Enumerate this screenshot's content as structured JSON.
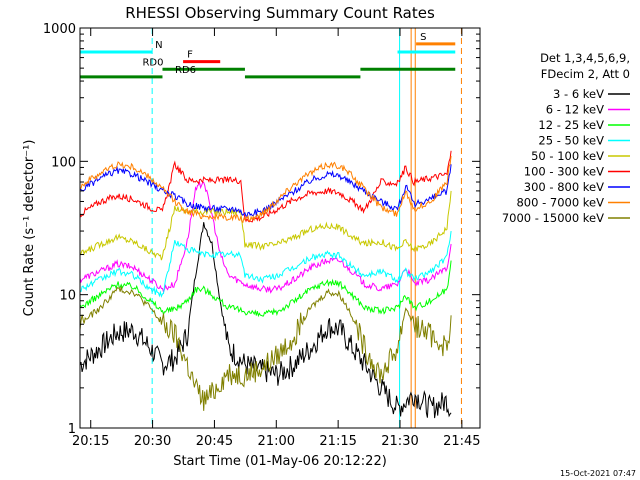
{
  "chart_data": {
    "type": "line",
    "title": "RHESSI Observing Summary Count Rates",
    "xlabel": "Start Time (01-May-06 20:12:22)",
    "ylabel": "Count Rate (s⁻¹ detector⁻¹)",
    "y_scale": "log",
    "ylim": [
      1,
      1000
    ],
    "xlim_minutes": [
      0,
      97
    ],
    "x_ticks": [
      {
        "t": 2.6,
        "label": "20:15"
      },
      {
        "t": 17.6,
        "label": "20:30"
      },
      {
        "t": 32.6,
        "label": "20:45"
      },
      {
        "t": 47.6,
        "label": "21:00"
      },
      {
        "t": 62.6,
        "label": "21:15"
      },
      {
        "t": 77.6,
        "label": "21:30"
      },
      {
        "t": 92.6,
        "label": "21:45"
      }
    ],
    "y_ticks": [
      {
        "v": 1,
        "label": "1"
      },
      {
        "v": 10,
        "label": "10"
      },
      {
        "v": 100,
        "label": "100"
      },
      {
        "v": 1000,
        "label": "1000"
      }
    ],
    "legend_header": [
      "Det 1,3,4,5,6,9,",
      "FDecim 2, Att 0"
    ],
    "series": [
      {
        "name": "3 - 6 keV",
        "color": "#000000",
        "points": [
          [
            0,
            3
          ],
          [
            5,
            4
          ],
          [
            9,
            5.2
          ],
          [
            13,
            5.4
          ],
          [
            17,
            4
          ],
          [
            20,
            3
          ],
          [
            23,
            3.3
          ],
          [
            26,
            5
          ],
          [
            28,
            14
          ],
          [
            30,
            35
          ],
          [
            32,
            24
          ],
          [
            34,
            9
          ],
          [
            36,
            4
          ],
          [
            40,
            3
          ],
          [
            44,
            2.7
          ],
          [
            48,
            2.5
          ],
          [
            52,
            3
          ],
          [
            56,
            4
          ],
          [
            60,
            5.8
          ],
          [
            63,
            5.5
          ],
          [
            66,
            4
          ],
          [
            69,
            3
          ],
          [
            73,
            2
          ],
          [
            77,
            1.4
          ],
          [
            81,
            1.8
          ],
          [
            85,
            1.4
          ],
          [
            89,
            1.6
          ],
          [
            90,
            1.3
          ]
        ]
      },
      {
        "name": "6 - 12 keV",
        "color": "#ff00ff",
        "points": [
          [
            0,
            13
          ],
          [
            5,
            15
          ],
          [
            9,
            17
          ],
          [
            13,
            16
          ],
          [
            17,
            13
          ],
          [
            20,
            11
          ],
          [
            23,
            12
          ],
          [
            26,
            25
          ],
          [
            28,
            60
          ],
          [
            30,
            72
          ],
          [
            32,
            40
          ],
          [
            34,
            20
          ],
          [
            36,
            14
          ],
          [
            40,
            12
          ],
          [
            44,
            11
          ],
          [
            48,
            11
          ],
          [
            52,
            13
          ],
          [
            56,
            16
          ],
          [
            60,
            18
          ],
          [
            63,
            18
          ],
          [
            66,
            15
          ],
          [
            69,
            12
          ],
          [
            73,
            11
          ],
          [
            77,
            12
          ],
          [
            79,
            16
          ],
          [
            81,
            12
          ],
          [
            85,
            13
          ],
          [
            89,
            16
          ],
          [
            90,
            24
          ]
        ]
      },
      {
        "name": "12 - 25 keV",
        "color": "#00ff00",
        "points": [
          [
            0,
            8
          ],
          [
            5,
            10
          ],
          [
            9,
            12
          ],
          [
            13,
            11.5
          ],
          [
            17,
            9
          ],
          [
            20,
            7.5
          ],
          [
            23,
            7.8
          ],
          [
            26,
            9
          ],
          [
            28,
            11
          ],
          [
            30,
            11
          ],
          [
            32,
            10
          ],
          [
            34,
            9
          ],
          [
            36,
            8
          ],
          [
            40,
            7.5
          ],
          [
            44,
            7
          ],
          [
            48,
            7.5
          ],
          [
            52,
            9
          ],
          [
            56,
            11
          ],
          [
            60,
            12.5
          ],
          [
            63,
            12
          ],
          [
            66,
            10
          ],
          [
            69,
            8
          ],
          [
            73,
            7.5
          ],
          [
            77,
            8
          ],
          [
            79,
            10
          ],
          [
            81,
            8
          ],
          [
            85,
            9
          ],
          [
            89,
            11
          ],
          [
            90,
            18
          ]
        ]
      },
      {
        "name": "25 - 50 keV",
        "color": "#00ffff",
        "points": [
          [
            0,
            11
          ],
          [
            5,
            13
          ],
          [
            9,
            15
          ],
          [
            13,
            14
          ],
          [
            17,
            11
          ],
          [
            20,
            10
          ],
          [
            23,
            25
          ],
          [
            26,
            22
          ],
          [
            28,
            21
          ],
          [
            30,
            20
          ],
          [
            32,
            20
          ],
          [
            34,
            20
          ],
          [
            36,
            20
          ],
          [
            39,
            20
          ],
          [
            40,
            14
          ],
          [
            44,
            13
          ],
          [
            48,
            14
          ],
          [
            52,
            16
          ],
          [
            56,
            19
          ],
          [
            60,
            20
          ],
          [
            63,
            19.5
          ],
          [
            66,
            16
          ],
          [
            69,
            14
          ],
          [
            73,
            15
          ],
          [
            77,
            13
          ],
          [
            79,
            15
          ],
          [
            81,
            13
          ],
          [
            85,
            15
          ],
          [
            89,
            19
          ],
          [
            90,
            30
          ]
        ]
      },
      {
        "name": "50 - 100 keV",
        "color": "#c8c800",
        "points": [
          [
            0,
            20
          ],
          [
            5,
            24
          ],
          [
            9,
            27
          ],
          [
            13,
            25
          ],
          [
            17,
            21
          ],
          [
            20,
            19
          ],
          [
            23,
            45
          ],
          [
            26,
            42
          ],
          [
            28,
            42
          ],
          [
            30,
            42
          ],
          [
            32,
            42
          ],
          [
            34,
            42
          ],
          [
            36,
            42
          ],
          [
            39,
            42
          ],
          [
            40,
            24
          ],
          [
            44,
            23
          ],
          [
            48,
            24
          ],
          [
            52,
            27
          ],
          [
            56,
            31
          ],
          [
            60,
            33
          ],
          [
            63,
            32
          ],
          [
            66,
            27
          ],
          [
            69,
            24
          ],
          [
            73,
            25
          ],
          [
            77,
            22
          ],
          [
            79,
            25
          ],
          [
            81,
            22
          ],
          [
            85,
            24
          ],
          [
            89,
            32
          ],
          [
            90,
            60
          ]
        ]
      },
      {
        "name": "100 - 300 keV",
        "color": "#ff0000",
        "points": [
          [
            0,
            40
          ],
          [
            5,
            50
          ],
          [
            9,
            55
          ],
          [
            13,
            52
          ],
          [
            17,
            45
          ],
          [
            20,
            42
          ],
          [
            23,
            95
          ],
          [
            26,
            72
          ],
          [
            28,
            72
          ],
          [
            30,
            72
          ],
          [
            32,
            72
          ],
          [
            34,
            72
          ],
          [
            36,
            72
          ],
          [
            39,
            72
          ],
          [
            40,
            36
          ],
          [
            44,
            38
          ],
          [
            48,
            44
          ],
          [
            52,
            52
          ],
          [
            56,
            58
          ],
          [
            60,
            60
          ],
          [
            63,
            58
          ],
          [
            66,
            50
          ],
          [
            69,
            43
          ],
          [
            73,
            70
          ],
          [
            77,
            68
          ],
          [
            79,
            90
          ],
          [
            81,
            70
          ],
          [
            85,
            75
          ],
          [
            89,
            80
          ],
          [
            90,
            120
          ]
        ]
      },
      {
        "name": "300 - 800 keV",
        "color": "#0000ff",
        "points": [
          [
            0,
            60
          ],
          [
            5,
            75
          ],
          [
            9,
            85
          ],
          [
            13,
            80
          ],
          [
            17,
            68
          ],
          [
            20,
            60
          ],
          [
            23,
            55
          ],
          [
            26,
            48
          ],
          [
            30,
            45
          ],
          [
            34,
            44
          ],
          [
            38,
            44
          ],
          [
            40,
            40
          ],
          [
            44,
            42
          ],
          [
            48,
            50
          ],
          [
            52,
            60
          ],
          [
            56,
            72
          ],
          [
            60,
            80
          ],
          [
            63,
            78
          ],
          [
            66,
            68
          ],
          [
            69,
            60
          ],
          [
            73,
            50
          ],
          [
            77,
            44
          ],
          [
            79,
            65
          ],
          [
            81,
            48
          ],
          [
            85,
            52
          ],
          [
            89,
            60
          ],
          [
            90,
            95
          ]
        ]
      },
      {
        "name": "800 - 7000 keV",
        "color": "#ff8000",
        "points": [
          [
            0,
            65
          ],
          [
            5,
            82
          ],
          [
            9,
            95
          ],
          [
            13,
            90
          ],
          [
            17,
            75
          ],
          [
            20,
            62
          ],
          [
            23,
            50
          ],
          [
            26,
            42
          ],
          [
            30,
            39
          ],
          [
            34,
            38
          ],
          [
            38,
            38
          ],
          [
            40,
            36
          ],
          [
            44,
            40
          ],
          [
            48,
            52
          ],
          [
            52,
            68
          ],
          [
            56,
            82
          ],
          [
            60,
            95
          ],
          [
            63,
            93
          ],
          [
            66,
            78
          ],
          [
            69,
            62
          ],
          [
            73,
            45
          ],
          [
            77,
            40
          ],
          [
            79,
            60
          ],
          [
            81,
            44
          ],
          [
            85,
            50
          ],
          [
            89,
            70
          ],
          [
            90,
            110
          ]
        ]
      },
      {
        "name": "7000 - 15000 keV",
        "color": "#808000",
        "points": [
          [
            0,
            6
          ],
          [
            5,
            8
          ],
          [
            9,
            11
          ],
          [
            13,
            10.5
          ],
          [
            17,
            8
          ],
          [
            20,
            6
          ],
          [
            23,
            5
          ],
          [
            26,
            3
          ],
          [
            28,
            2
          ],
          [
            30,
            1.6
          ],
          [
            32,
            1.8
          ],
          [
            34,
            2.2
          ],
          [
            36,
            2.6
          ],
          [
            40,
            2.5
          ],
          [
            44,
            2.8
          ],
          [
            48,
            3.5
          ],
          [
            52,
            5
          ],
          [
            56,
            8
          ],
          [
            60,
            10.5
          ],
          [
            63,
            10
          ],
          [
            66,
            7
          ],
          [
            69,
            4
          ],
          [
            73,
            2.5
          ],
          [
            77,
            4
          ],
          [
            79,
            8
          ],
          [
            81,
            6
          ],
          [
            85,
            5
          ],
          [
            89,
            4
          ],
          [
            90,
            7
          ]
        ]
      }
    ],
    "flags": [
      {
        "label": "N",
        "color": "#00ffff",
        "t0": 0,
        "t1": 17.5,
        "level": 660
      },
      {
        "label": "F",
        "color": "#ff0000",
        "t0": 25,
        "t1": 34,
        "level": 560
      },
      {
        "label": "RD0",
        "color": "#008000",
        "t0": 20,
        "t1": 40,
        "level": 490
      },
      {
        "label": "RD6",
        "color": "#008000",
        "t0": 0,
        "t1": 20,
        "level": 430
      },
      {
        "label": "",
        "color": "#008000",
        "t0": 40,
        "t1": 68,
        "level": 430
      },
      {
        "label": "",
        "color": "#008000",
        "t0": 68,
        "t1": 91,
        "level": 490
      },
      {
        "label": "S",
        "color": "#ff8000",
        "t0": 81.5,
        "t1": 91,
        "level": 760
      },
      {
        "label": "",
        "color": "#00ffff",
        "t0": 77,
        "t1": 91,
        "level": 660
      }
    ],
    "vertical_lines": [
      {
        "t": 0,
        "color": "#00ffff",
        "dashed": false
      },
      {
        "t": 17.5,
        "color": "#00ffff",
        "dashed": true
      },
      {
        "t": 77.5,
        "color": "#00ffff",
        "dashed": false
      },
      {
        "t": 80.3,
        "color": "#ff8000",
        "dashed": false
      },
      {
        "t": 81.3,
        "color": "#ff8000",
        "dashed": false
      },
      {
        "t": 92.5,
        "color": "#ff8000",
        "dashed": true
      }
    ],
    "timestamp": "15-Oct-2021 07:47"
  }
}
